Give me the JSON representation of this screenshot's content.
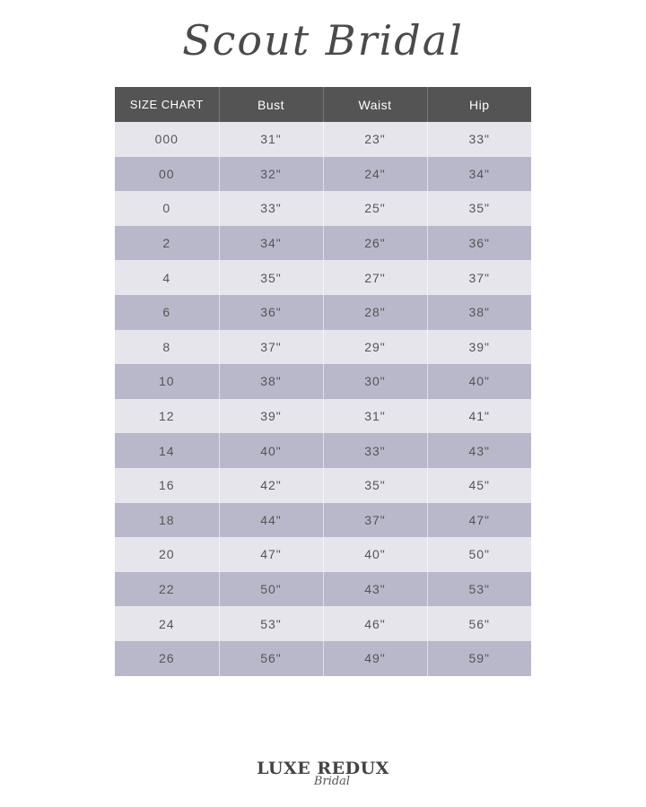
{
  "header": {
    "title": "Scout Bridal"
  },
  "table": {
    "columns": [
      "SIZE CHART",
      "Bust",
      "Waist",
      "Hip"
    ],
    "rows": [
      [
        "000",
        "31\"",
        "23\"",
        "33\""
      ],
      [
        "00",
        "32\"",
        "24\"",
        "34\""
      ],
      [
        "0",
        "33\"",
        "25\"",
        "35\""
      ],
      [
        "2",
        "34\"",
        "26\"",
        "36\""
      ],
      [
        "4",
        "35\"",
        "27\"",
        "37\""
      ],
      [
        "6",
        "36\"",
        "28\"",
        "38\""
      ],
      [
        "8",
        "37\"",
        "29\"",
        "39\""
      ],
      [
        "10",
        "38\"",
        "30\"",
        "40\""
      ],
      [
        "12",
        "39\"",
        "31\"",
        "41\""
      ],
      [
        "14",
        "40\"",
        "33\"",
        "43\""
      ],
      [
        "16",
        "42\"",
        "35\"",
        "45\""
      ],
      [
        "18",
        "44\"",
        "37\"",
        "47\""
      ],
      [
        "20",
        "47\"",
        "40\"",
        "50\""
      ],
      [
        "22",
        "50\"",
        "43\"",
        "53\""
      ],
      [
        "24",
        "53\"",
        "46\"",
        "56\""
      ],
      [
        "26",
        "56\"",
        "49\"",
        "59\""
      ]
    ]
  },
  "footer": {
    "logo_main": "LUXE REDUX",
    "logo_sub": "Bridal"
  },
  "colors": {
    "header_bg": "#545454",
    "row_light": "#e6e5ec",
    "row_dark": "#b9b8cb"
  }
}
